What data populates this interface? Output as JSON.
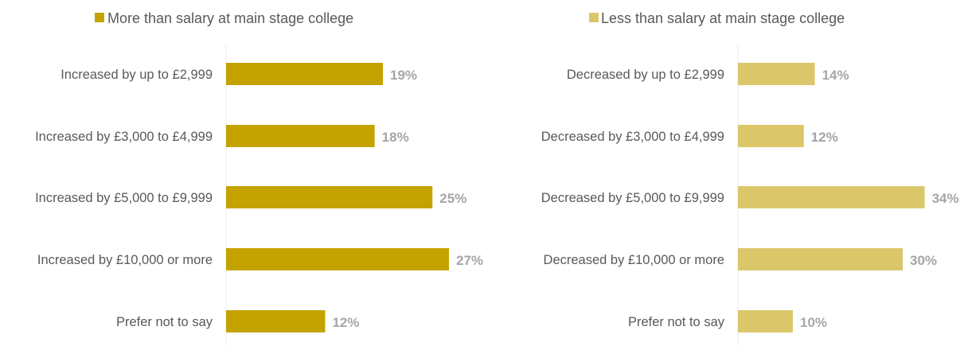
{
  "chart_data": [
    {
      "type": "bar",
      "orientation": "horizontal",
      "legend": "More than salary at main stage college",
      "legend_position": "top",
      "color": "#C4A300",
      "categories": [
        "Increased by up to £2,999",
        "Increased by £3,000 to £4,999",
        "Increased by £5,000 to £9,999",
        "Increased by £10,000 or more",
        "Prefer not to say"
      ],
      "values": [
        19,
        18,
        25,
        27,
        12
      ],
      "value_labels": [
        "19%",
        "18%",
        "25%",
        "27%",
        "12%"
      ],
      "unit": "%",
      "xlim": [
        0,
        30
      ],
      "grid": false
    },
    {
      "type": "bar",
      "orientation": "horizontal",
      "legend": "Less than salary at main stage college",
      "legend_position": "top",
      "color": "#DBC76A",
      "categories": [
        "Decreased by up to £2,999",
        "Decreased by £3,000 to £4,999",
        "Decreased by £5,000 to £9,999",
        "Decreased by £10,000 or more",
        "Prefer not to say"
      ],
      "values": [
        14,
        12,
        34,
        30,
        10
      ],
      "value_labels": [
        "14%",
        "12%",
        "34%",
        "30%",
        "10%"
      ],
      "unit": "%",
      "xlim": [
        0,
        37
      ],
      "grid": false
    }
  ]
}
